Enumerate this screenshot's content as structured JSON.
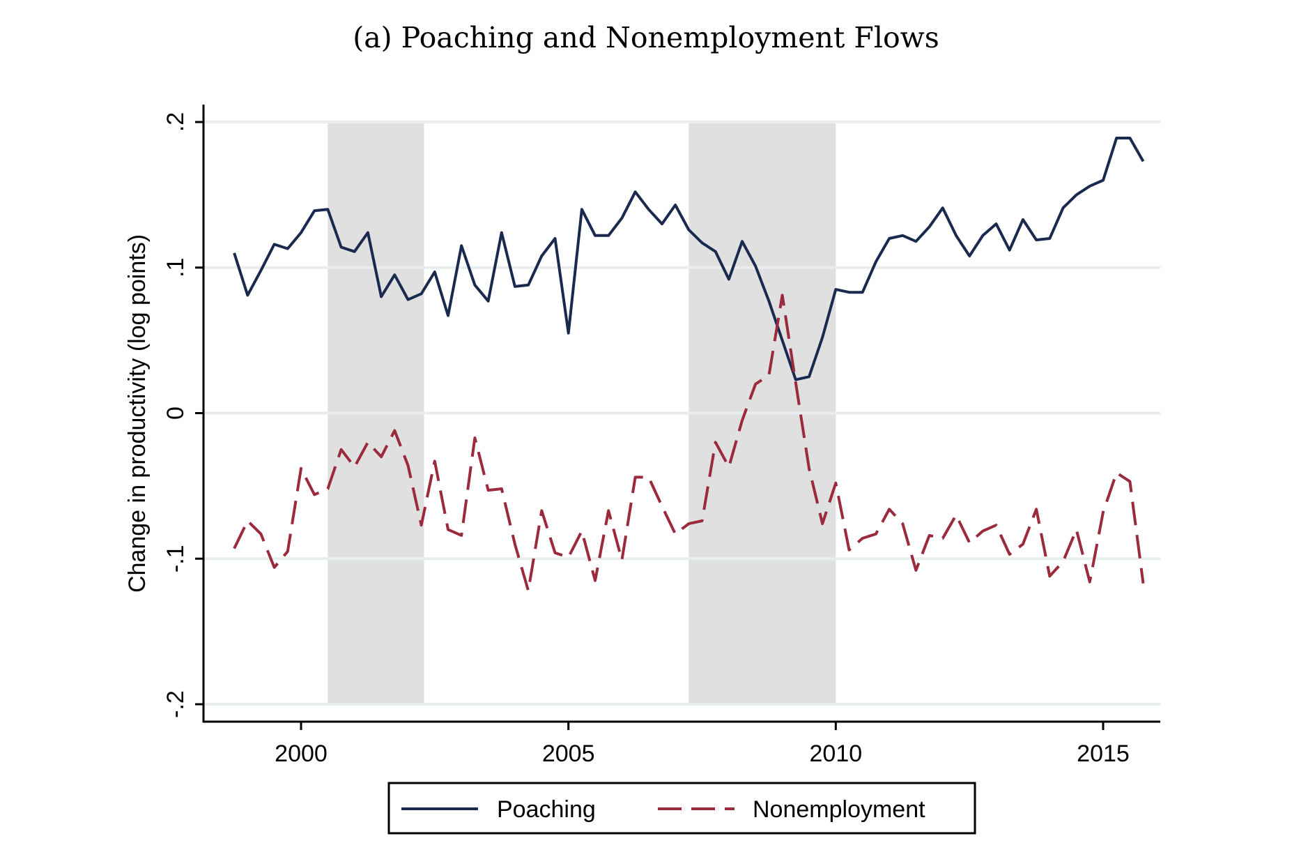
{
  "chart_data": {
    "type": "line",
    "title": "(a) Poaching and Nonemployment Flows",
    "xlabel": "",
    "ylabel": "Change in productivity (log points)",
    "xlim": [
      1998.2,
      2016.1
    ],
    "ylim": [
      -0.21,
      0.21
    ],
    "x_ticks": [
      2000,
      2005,
      2010,
      2015
    ],
    "x_tick_labels": [
      "2000",
      "2005",
      "2010",
      "2015"
    ],
    "y_ticks": [
      -0.2,
      -0.1,
      0,
      0.1,
      0.2
    ],
    "y_tick_labels": [
      "-.2",
      "-.1",
      "0",
      ".1",
      ".2"
    ],
    "grid": true,
    "legend_position": "bottom",
    "recession_shading": [
      {
        "start": 2000.5,
        "end": 2002.3
      },
      {
        "start": 2007.25,
        "end": 2010.0
      }
    ],
    "x": [
      1998.75,
      1999.0,
      1999.25,
      1999.5,
      1999.75,
      2000.0,
      2000.25,
      2000.5,
      2000.75,
      2001.0,
      2001.25,
      2001.5,
      2001.75,
      2002.0,
      2002.25,
      2002.5,
      2002.75,
      2003.0,
      2003.25,
      2003.5,
      2003.75,
      2004.0,
      2004.25,
      2004.5,
      2004.75,
      2005.0,
      2005.25,
      2005.5,
      2005.75,
      2006.0,
      2006.25,
      2006.5,
      2006.75,
      2007.0,
      2007.25,
      2007.5,
      2007.75,
      2008.0,
      2008.25,
      2008.5,
      2008.75,
      2009.0,
      2009.25,
      2009.5,
      2009.75,
      2010.0,
      2010.25,
      2010.5,
      2010.75,
      2011.0,
      2011.25,
      2011.5,
      2011.75,
      2012.0,
      2012.25,
      2012.5,
      2012.75,
      2013.0,
      2013.25,
      2013.5,
      2013.75,
      2014.0,
      2014.25,
      2014.5,
      2014.75,
      2015.0,
      2015.25,
      2015.5,
      2015.75
    ],
    "series": [
      {
        "name": "Poaching",
        "color": "#1a2a4f",
        "dash": "solid",
        "values": [
          0.11,
          0.081,
          0.098,
          0.116,
          0.113,
          0.124,
          0.139,
          0.14,
          0.114,
          0.111,
          0.124,
          0.08,
          0.095,
          0.078,
          0.082,
          0.097,
          0.067,
          0.115,
          0.088,
          0.077,
          0.124,
          0.087,
          0.088,
          0.108,
          0.12,
          0.055,
          0.14,
          0.122,
          0.122,
          0.134,
          0.152,
          0.14,
          0.13,
          0.143,
          0.126,
          0.117,
          0.111,
          0.092,
          0.118,
          0.101,
          0.077,
          0.05,
          0.023,
          0.025,
          0.052,
          0.085,
          0.083,
          0.083,
          0.104,
          0.12,
          0.122,
          0.118,
          0.128,
          0.141,
          0.122,
          0.108,
          0.122,
          0.13,
          0.112,
          0.133,
          0.119,
          0.12,
          0.141,
          0.15,
          0.156,
          0.16,
          0.189,
          0.189,
          0.173
        ]
      },
      {
        "name": "Nonemployment",
        "color": "#9b2a3c",
        "dash": "dashed",
        "values": [
          -0.093,
          -0.074,
          -0.083,
          -0.106,
          -0.095,
          -0.038,
          -0.056,
          -0.052,
          -0.025,
          -0.037,
          -0.02,
          -0.03,
          -0.012,
          -0.036,
          -0.077,
          -0.033,
          -0.08,
          -0.084,
          -0.017,
          -0.053,
          -0.052,
          -0.09,
          -0.122,
          -0.067,
          -0.096,
          -0.099,
          -0.081,
          -0.115,
          -0.067,
          -0.101,
          -0.044,
          -0.044,
          -0.064,
          -0.083,
          -0.076,
          -0.074,
          -0.02,
          -0.037,
          -0.005,
          0.02,
          0.026,
          0.081,
          0.021,
          -0.038,
          -0.076,
          -0.048,
          -0.094,
          -0.086,
          -0.083,
          -0.066,
          -0.076,
          -0.108,
          -0.084,
          -0.086,
          -0.07,
          -0.089,
          -0.081,
          -0.077,
          -0.097,
          -0.09,
          -0.066,
          -0.112,
          -0.102,
          -0.08,
          -0.116,
          -0.068,
          -0.041,
          -0.047,
          -0.117
        ]
      }
    ]
  }
}
